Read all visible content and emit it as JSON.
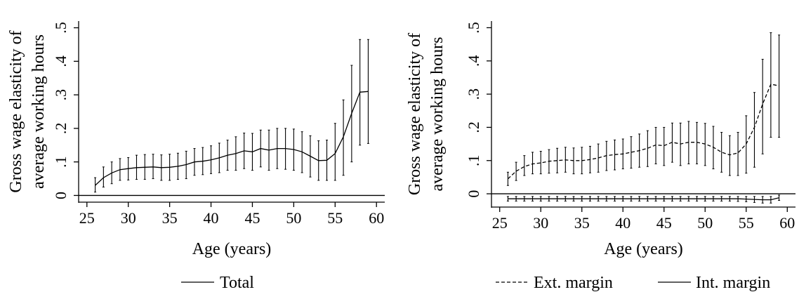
{
  "chart_data": [
    {
      "type": "line",
      "xlabel": "Age (years)",
      "ylabel": [
        "Gross wage elasticity of",
        "average working hours"
      ],
      "xlim": [
        24,
        61
      ],
      "ylim": [
        -0.02,
        0.52
      ],
      "xticks": [
        25,
        30,
        35,
        40,
        45,
        50,
        55,
        60
      ],
      "yticks": [
        0,
        0.1,
        0.2,
        0.3,
        0.4,
        0.5
      ],
      "ytick_labels": [
        "0",
        ".1",
        ".2",
        ".3",
        ".4",
        ".5"
      ],
      "reference_line_y": 0,
      "grid": false,
      "legend_placement": "bottom",
      "series": [
        {
          "name": "Total",
          "line_style": "solid",
          "x": [
            26,
            27,
            28,
            29,
            30,
            31,
            32,
            33,
            34,
            35,
            36,
            37,
            38,
            39,
            40,
            41,
            42,
            43,
            44,
            45,
            46,
            47,
            48,
            49,
            50,
            51,
            52,
            53,
            54,
            55,
            56,
            57,
            58,
            59
          ],
          "y": [
            0.03,
            0.053,
            0.067,
            0.077,
            0.08,
            0.083,
            0.084,
            0.085,
            0.083,
            0.084,
            0.087,
            0.092,
            0.1,
            0.102,
            0.106,
            0.112,
            0.12,
            0.125,
            0.133,
            0.13,
            0.14,
            0.135,
            0.14,
            0.14,
            0.137,
            0.13,
            0.117,
            0.104,
            0.105,
            0.125,
            0.175,
            0.245,
            0.308,
            0.31
          ],
          "ci_low": [
            0.01,
            0.025,
            0.035,
            0.045,
            0.046,
            0.048,
            0.048,
            0.05,
            0.045,
            0.045,
            0.048,
            0.05,
            0.06,
            0.062,
            0.065,
            0.068,
            0.075,
            0.075,
            0.08,
            0.075,
            0.085,
            0.075,
            0.08,
            0.078,
            0.075,
            0.068,
            0.055,
            0.045,
            0.045,
            0.045,
            0.06,
            0.1,
            0.15,
            0.155
          ],
          "ci_high": [
            0.053,
            0.085,
            0.1,
            0.11,
            0.113,
            0.12,
            0.122,
            0.123,
            0.121,
            0.123,
            0.126,
            0.132,
            0.14,
            0.143,
            0.148,
            0.156,
            0.165,
            0.175,
            0.186,
            0.185,
            0.195,
            0.195,
            0.2,
            0.2,
            0.198,
            0.19,
            0.178,
            0.163,
            0.165,
            0.215,
            0.285,
            0.388,
            0.465,
            0.465
          ]
        }
      ]
    },
    {
      "type": "line",
      "xlabel": "Age (years)",
      "ylabel": [
        "Gross wage elasticity of",
        "average working hours"
      ],
      "xlim": [
        24,
        61
      ],
      "ylim": [
        -0.04,
        0.52
      ],
      "xticks": [
        25,
        30,
        35,
        40,
        45,
        50,
        55,
        60
      ],
      "yticks": [
        0,
        0.1,
        0.2,
        0.3,
        0.4,
        0.5
      ],
      "ytick_labels": [
        "0",
        ".1",
        ".2",
        ".3",
        ".4",
        ".5"
      ],
      "reference_line_y": 0,
      "grid": false,
      "legend_placement": "bottom",
      "series": [
        {
          "name": "Ext. margin",
          "line_style": "dashed",
          "x": [
            26,
            27,
            28,
            29,
            30,
            31,
            32,
            33,
            34,
            35,
            36,
            37,
            38,
            39,
            40,
            41,
            42,
            43,
            44,
            45,
            46,
            47,
            48,
            49,
            50,
            51,
            52,
            53,
            54,
            55,
            56,
            57,
            58,
            59
          ],
          "y": [
            0.045,
            0.068,
            0.082,
            0.09,
            0.093,
            0.098,
            0.1,
            0.102,
            0.1,
            0.1,
            0.103,
            0.108,
            0.115,
            0.118,
            0.12,
            0.125,
            0.13,
            0.137,
            0.147,
            0.145,
            0.155,
            0.15,
            0.155,
            0.155,
            0.15,
            0.14,
            0.125,
            0.117,
            0.123,
            0.15,
            0.2,
            0.27,
            0.33,
            0.325
          ],
          "ci_low": [
            0.025,
            0.04,
            0.055,
            0.06,
            0.06,
            0.062,
            0.063,
            0.065,
            0.06,
            0.06,
            0.063,
            0.065,
            0.07,
            0.072,
            0.075,
            0.077,
            0.08,
            0.082,
            0.09,
            0.085,
            0.095,
            0.085,
            0.09,
            0.09,
            0.085,
            0.075,
            0.065,
            0.055,
            0.055,
            0.062,
            0.08,
            0.12,
            0.17,
            0.17
          ],
          "ci_high": [
            0.065,
            0.095,
            0.115,
            0.125,
            0.128,
            0.133,
            0.137,
            0.14,
            0.138,
            0.14,
            0.143,
            0.15,
            0.158,
            0.162,
            0.165,
            0.172,
            0.18,
            0.19,
            0.2,
            0.2,
            0.213,
            0.213,
            0.218,
            0.215,
            0.212,
            0.203,
            0.185,
            0.175,
            0.185,
            0.235,
            0.305,
            0.405,
            0.485,
            0.478
          ]
        },
        {
          "name": "Int. margin",
          "line_style": "solid",
          "x": [
            26,
            27,
            28,
            29,
            30,
            31,
            32,
            33,
            34,
            35,
            36,
            37,
            38,
            39,
            40,
            41,
            42,
            43,
            44,
            45,
            46,
            47,
            48,
            49,
            50,
            51,
            52,
            53,
            54,
            55,
            56,
            57,
            58,
            59
          ],
          "y": [
            -0.015,
            -0.015,
            -0.015,
            -0.015,
            -0.015,
            -0.015,
            -0.015,
            -0.015,
            -0.015,
            -0.015,
            -0.015,
            -0.015,
            -0.015,
            -0.015,
            -0.015,
            -0.015,
            -0.015,
            -0.015,
            -0.015,
            -0.015,
            -0.015,
            -0.015,
            -0.015,
            -0.015,
            -0.015,
            -0.015,
            -0.015,
            -0.015,
            -0.015,
            -0.016,
            -0.017,
            -0.018,
            -0.018,
            -0.012
          ],
          "ci_low": [
            -0.022,
            -0.022,
            -0.022,
            -0.022,
            -0.022,
            -0.022,
            -0.022,
            -0.022,
            -0.022,
            -0.022,
            -0.022,
            -0.022,
            -0.022,
            -0.022,
            -0.022,
            -0.022,
            -0.022,
            -0.022,
            -0.022,
            -0.022,
            -0.022,
            -0.022,
            -0.022,
            -0.022,
            -0.022,
            -0.022,
            -0.022,
            -0.022,
            -0.023,
            -0.024,
            -0.026,
            -0.028,
            -0.028,
            -0.02
          ],
          "ci_high": [
            -0.008,
            -0.008,
            -0.008,
            -0.008,
            -0.008,
            -0.008,
            -0.008,
            -0.008,
            -0.008,
            -0.008,
            -0.008,
            -0.008,
            -0.008,
            -0.008,
            -0.008,
            -0.008,
            -0.008,
            -0.008,
            -0.008,
            -0.008,
            -0.008,
            -0.008,
            -0.008,
            -0.008,
            -0.008,
            -0.008,
            -0.008,
            -0.008,
            -0.008,
            -0.008,
            -0.008,
            -0.008,
            -0.008,
            -0.004
          ]
        }
      ]
    }
  ]
}
